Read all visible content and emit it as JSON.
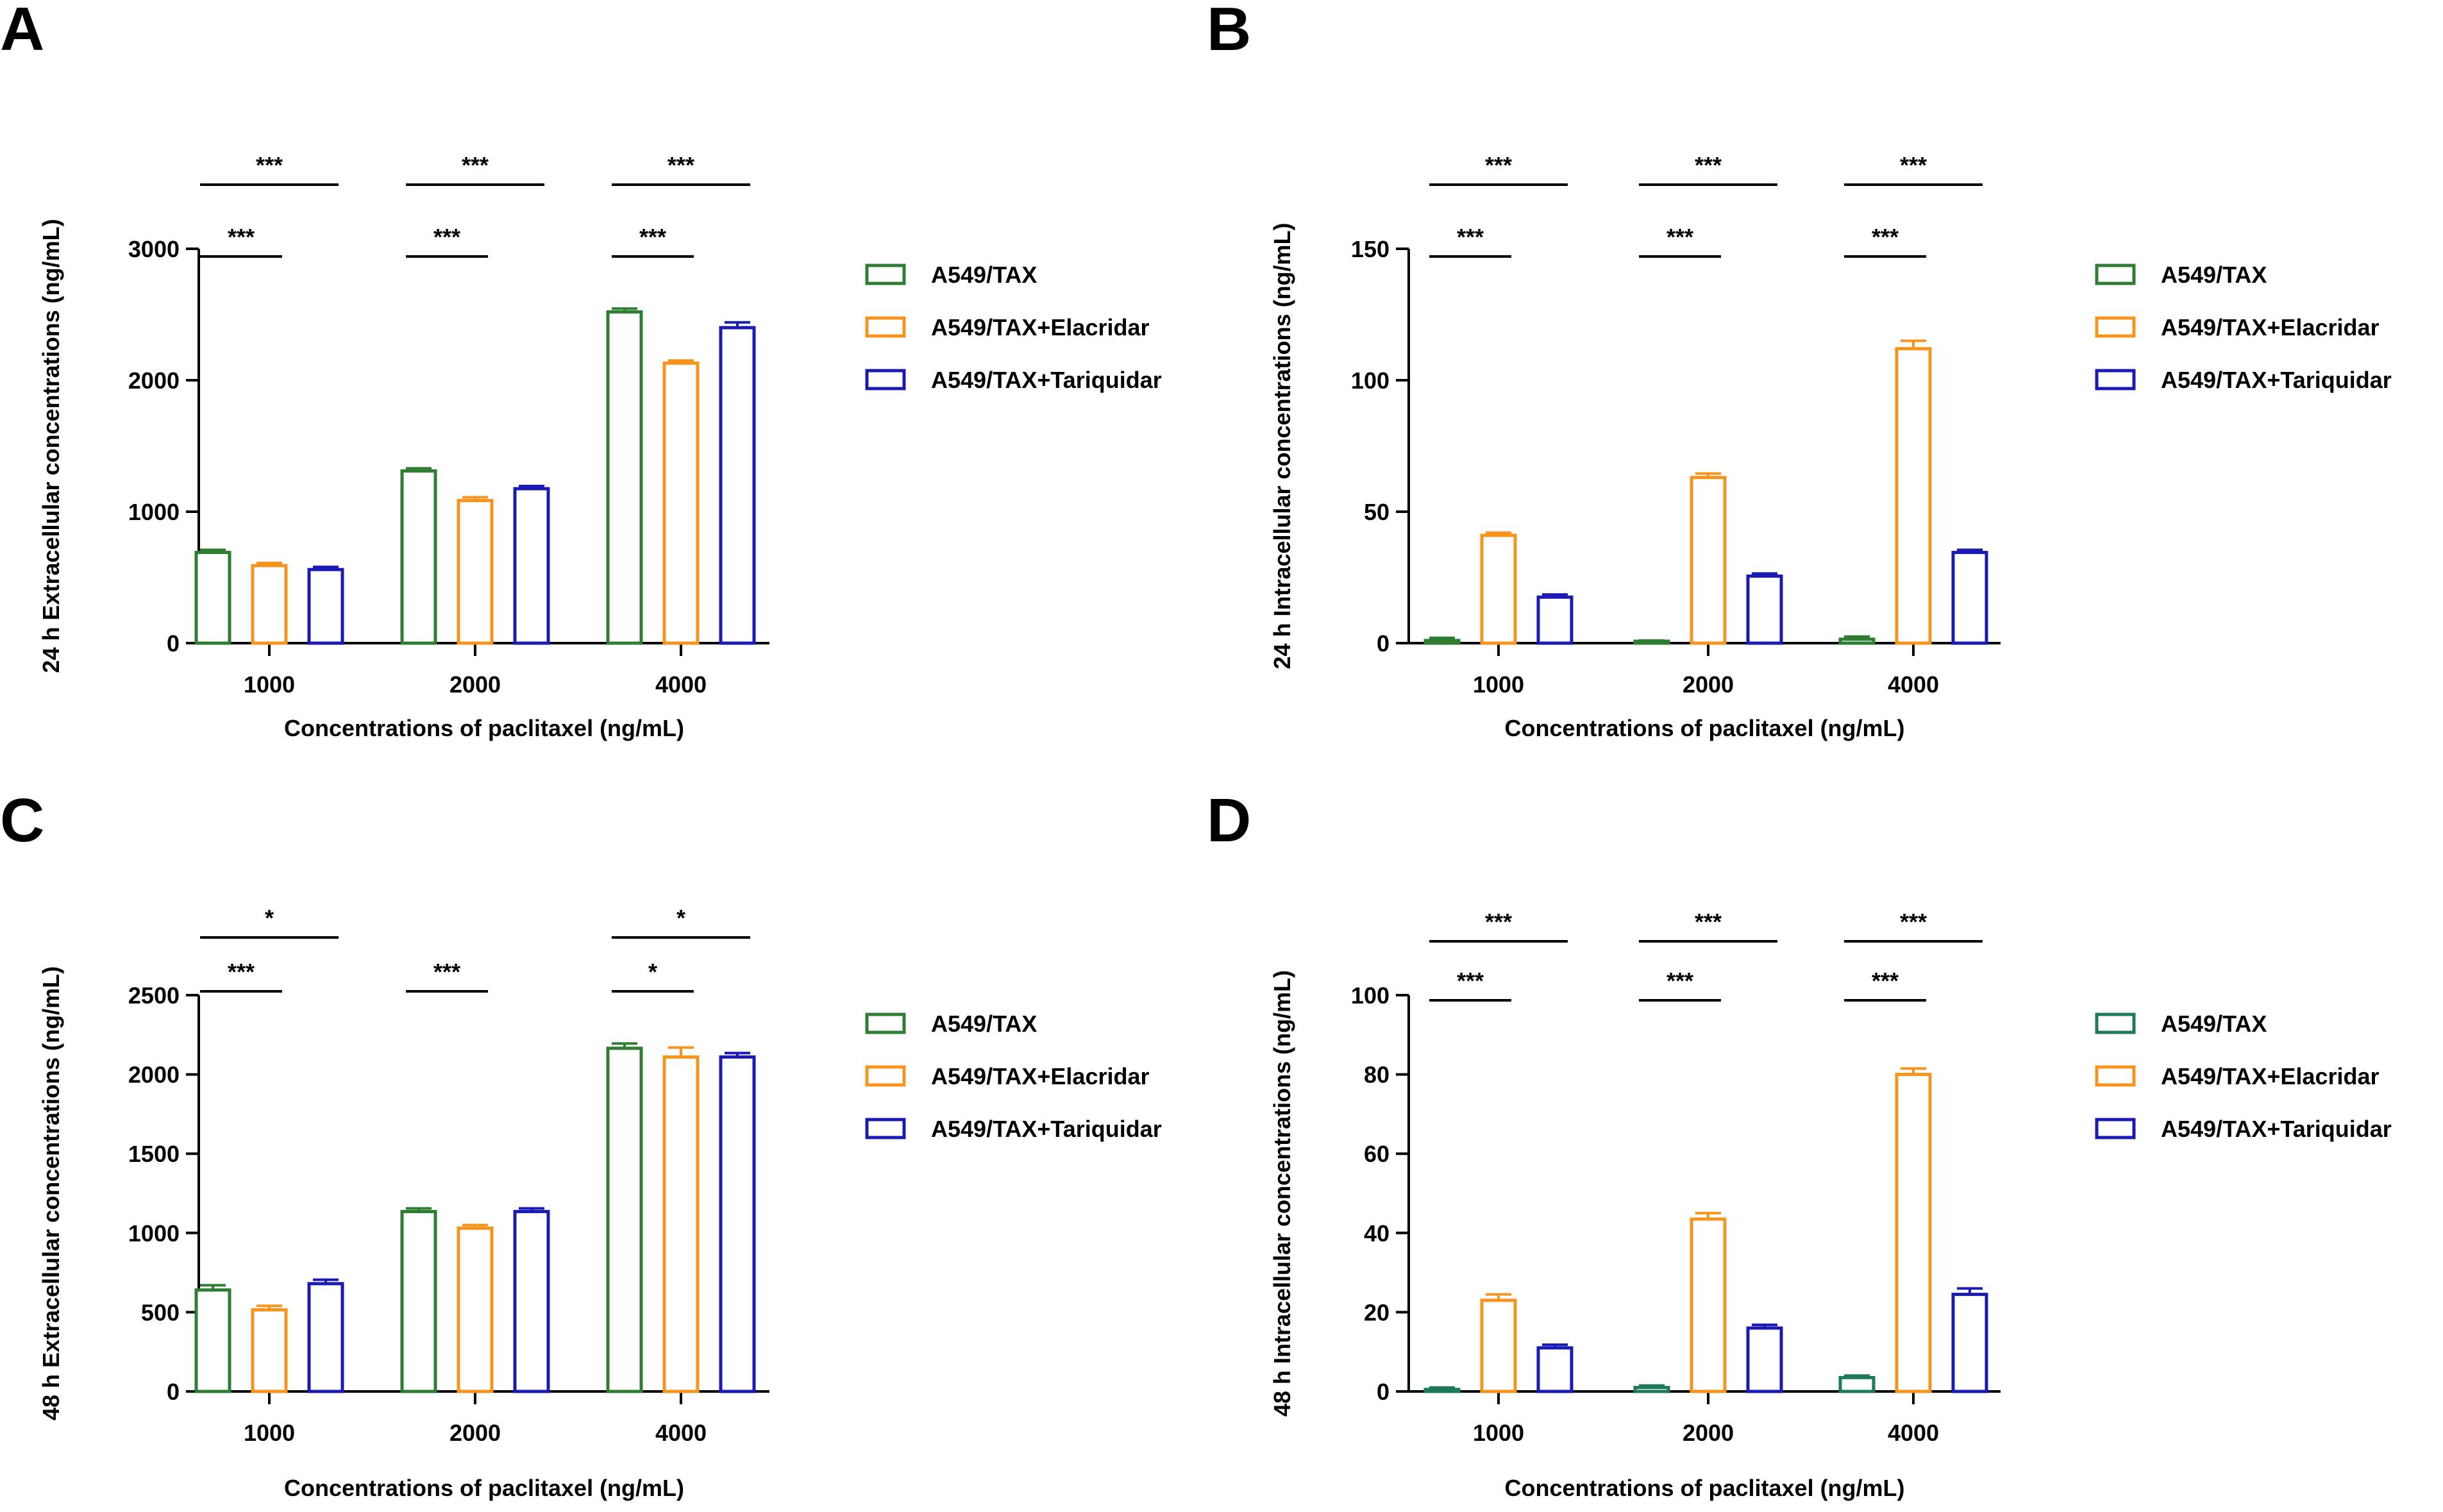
{
  "colors": {
    "tax": "#2e7d32",
    "tax_teal": "#1f7a5c",
    "elacridar": "#f7941d",
    "tariquidar": "#1b1bb3",
    "axis": "#000000"
  },
  "chart_data": [
    {
      "panel": "A",
      "type": "bar",
      "title": "",
      "xlabel": "Concentrations of paclitaxel (ng/mL)",
      "ylabel": "24 h Extracellular concentrations (ng/mL)",
      "ylim": [
        0,
        3000
      ],
      "yticks": [
        0,
        1000,
        2000,
        3000
      ],
      "categories": [
        "1000",
        "2000",
        "4000"
      ],
      "legend_position": "right",
      "series": [
        {
          "name": "A549/TAX",
          "color_key": "tax",
          "values": [
            690,
            1310,
            2520
          ],
          "errors": [
            20,
            20,
            25
          ]
        },
        {
          "name": "A549/TAX+Elacridar",
          "color_key": "elacridar",
          "values": [
            590,
            1085,
            2130
          ],
          "errors": [
            20,
            25,
            20
          ]
        },
        {
          "name": "A549/TAX+Tariquidar",
          "color_key": "tariquidar",
          "values": [
            560,
            1175,
            2400
          ],
          "errors": [
            20,
            20,
            40
          ]
        }
      ],
      "significance": [
        {
          "group": 0,
          "from": 0,
          "to": 2,
          "label": "***",
          "level": "upper"
        },
        {
          "group": 0,
          "from": 0,
          "to": 1,
          "label": "***",
          "level": "lower"
        },
        {
          "group": 1,
          "from": 0,
          "to": 2,
          "label": "***",
          "level": "upper"
        },
        {
          "group": 1,
          "from": 0,
          "to": 1,
          "label": "***",
          "level": "lower"
        },
        {
          "group": 2,
          "from": 0,
          "to": 2,
          "label": "***",
          "level": "upper"
        },
        {
          "group": 2,
          "from": 0,
          "to": 1,
          "label": "***",
          "level": "lower"
        }
      ]
    },
    {
      "panel": "B",
      "type": "bar",
      "title": "",
      "xlabel": "Concentrations of paclitaxel (ng/mL)",
      "ylabel": "24 h Intracellular concentrations (ng/mL)",
      "ylim": [
        0,
        150
      ],
      "yticks": [
        0,
        50,
        100,
        150
      ],
      "categories": [
        "1000",
        "2000",
        "4000"
      ],
      "legend_position": "right",
      "series": [
        {
          "name": "A549/TAX",
          "color_key": "tax",
          "values": [
            1,
            0.5,
            1.5
          ],
          "errors": [
            1,
            0.5,
            1
          ]
        },
        {
          "name": "A549/TAX+Elacridar",
          "color_key": "elacridar",
          "values": [
            41,
            63,
            112
          ],
          "errors": [
            1,
            1.5,
            3
          ]
        },
        {
          "name": "A549/TAX+Tariquidar",
          "color_key": "tariquidar",
          "values": [
            17.5,
            25.5,
            34.5
          ],
          "errors": [
            1,
            1,
            1
          ]
        }
      ],
      "significance": [
        {
          "group": 0,
          "from": 0,
          "to": 2,
          "label": "***",
          "level": "upper"
        },
        {
          "group": 0,
          "from": 0,
          "to": 1,
          "label": "***",
          "level": "lower"
        },
        {
          "group": 1,
          "from": 0,
          "to": 2,
          "label": "***",
          "level": "upper"
        },
        {
          "group": 1,
          "from": 0,
          "to": 1,
          "label": "***",
          "level": "lower"
        },
        {
          "group": 2,
          "from": 0,
          "to": 2,
          "label": "***",
          "level": "upper"
        },
        {
          "group": 2,
          "from": 0,
          "to": 1,
          "label": "***",
          "level": "lower"
        }
      ]
    },
    {
      "panel": "C",
      "type": "bar",
      "title": "",
      "xlabel": "Concentrations of paclitaxel (ng/mL)",
      "ylabel": "48 h Extracellular concentrations (ng/mL)",
      "ylim": [
        0,
        2500
      ],
      "yticks": [
        0,
        500,
        1000,
        1500,
        2000,
        2500
      ],
      "categories": [
        "1000",
        "2000",
        "4000"
      ],
      "legend_position": "right",
      "series": [
        {
          "name": "A549/TAX",
          "color_key": "tax",
          "values": [
            640,
            1135,
            2165
          ],
          "errors": [
            30,
            20,
            30
          ]
        },
        {
          "name": "A549/TAX+Elacridar",
          "color_key": "elacridar",
          "values": [
            515,
            1030,
            2110
          ],
          "errors": [
            25,
            20,
            60
          ]
        },
        {
          "name": "A549/TAX+Tariquidar",
          "color_key": "tariquidar",
          "values": [
            680,
            1135,
            2110
          ],
          "errors": [
            25,
            20,
            25
          ]
        }
      ],
      "significance": [
        {
          "group": 0,
          "from": 0,
          "to": 2,
          "label": "*",
          "level": "upper"
        },
        {
          "group": 0,
          "from": 0,
          "to": 1,
          "label": "***",
          "level": "lower"
        },
        {
          "group": 1,
          "from": 0,
          "to": 1,
          "label": "***",
          "level": "lower"
        },
        {
          "group": 2,
          "from": 0,
          "to": 2,
          "label": "*",
          "level": "upper"
        },
        {
          "group": 2,
          "from": 0,
          "to": 1,
          "label": "*",
          "level": "lower"
        }
      ]
    },
    {
      "panel": "D",
      "type": "bar",
      "title": "",
      "xlabel": "Concentrations of paclitaxel (ng/mL)",
      "ylabel": "48 h Intracellular concentrations (ng/mL)",
      "ylim": [
        0,
        100
      ],
      "yticks": [
        0,
        20,
        40,
        60,
        80,
        100
      ],
      "categories": [
        "1000",
        "2000",
        "4000"
      ],
      "legend_position": "right",
      "series": [
        {
          "name": "A549/TAX",
          "color_key": "tax_teal",
          "values": [
            0.5,
            1,
            3.5
          ],
          "errors": [
            0.5,
            0.5,
            0.5
          ]
        },
        {
          "name": "A549/TAX+Elacridar",
          "color_key": "elacridar",
          "values": [
            23,
            43.5,
            80
          ],
          "errors": [
            1.5,
            1.5,
            1.5
          ]
        },
        {
          "name": "A549/TAX+Tariquidar",
          "color_key": "tariquidar",
          "values": [
            11,
            16,
            24.5
          ],
          "errors": [
            0.8,
            0.8,
            1.5
          ]
        }
      ],
      "significance": [
        {
          "group": 0,
          "from": 0,
          "to": 2,
          "label": "***",
          "level": "upper"
        },
        {
          "group": 0,
          "from": 0,
          "to": 1,
          "label": "***",
          "level": "lower"
        },
        {
          "group": 1,
          "from": 0,
          "to": 2,
          "label": "***",
          "level": "upper"
        },
        {
          "group": 1,
          "from": 0,
          "to": 1,
          "label": "***",
          "level": "lower"
        },
        {
          "group": 2,
          "from": 0,
          "to": 2,
          "label": "***",
          "level": "upper"
        },
        {
          "group": 2,
          "from": 0,
          "to": 1,
          "label": "***",
          "level": "lower"
        }
      ]
    }
  ]
}
